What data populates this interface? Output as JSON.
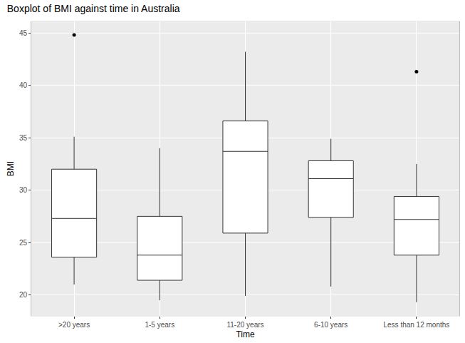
{
  "chart_data": {
    "type": "box",
    "title": "Boxplot of BMI against time in Australia",
    "x_label": "Time",
    "y_label": "BMI",
    "categories": [
      ">20 years",
      "1-5 years",
      "11-20 years",
      "6-10 years",
      "Less than 12 months"
    ],
    "lower_whisker": [
      21.0,
      19.5,
      19.9,
      20.8,
      19.3
    ],
    "q1": [
      23.6,
      21.4,
      25.9,
      27.4,
      23.8
    ],
    "median": [
      27.3,
      23.8,
      33.7,
      31.1,
      27.2
    ],
    "q3": [
      32.0,
      27.5,
      36.6,
      32.8,
      29.4
    ],
    "upper_whisker": [
      35.1,
      34.0,
      43.2,
      34.9,
      32.5
    ],
    "outliers": [
      [
        44.8
      ],
      [],
      [],
      [],
      [
        41.3
      ]
    ],
    "ylim": [
      18.0,
      46.1
    ],
    "yticks": [
      20,
      25,
      30,
      35,
      40,
      45
    ],
    "grid": true
  }
}
